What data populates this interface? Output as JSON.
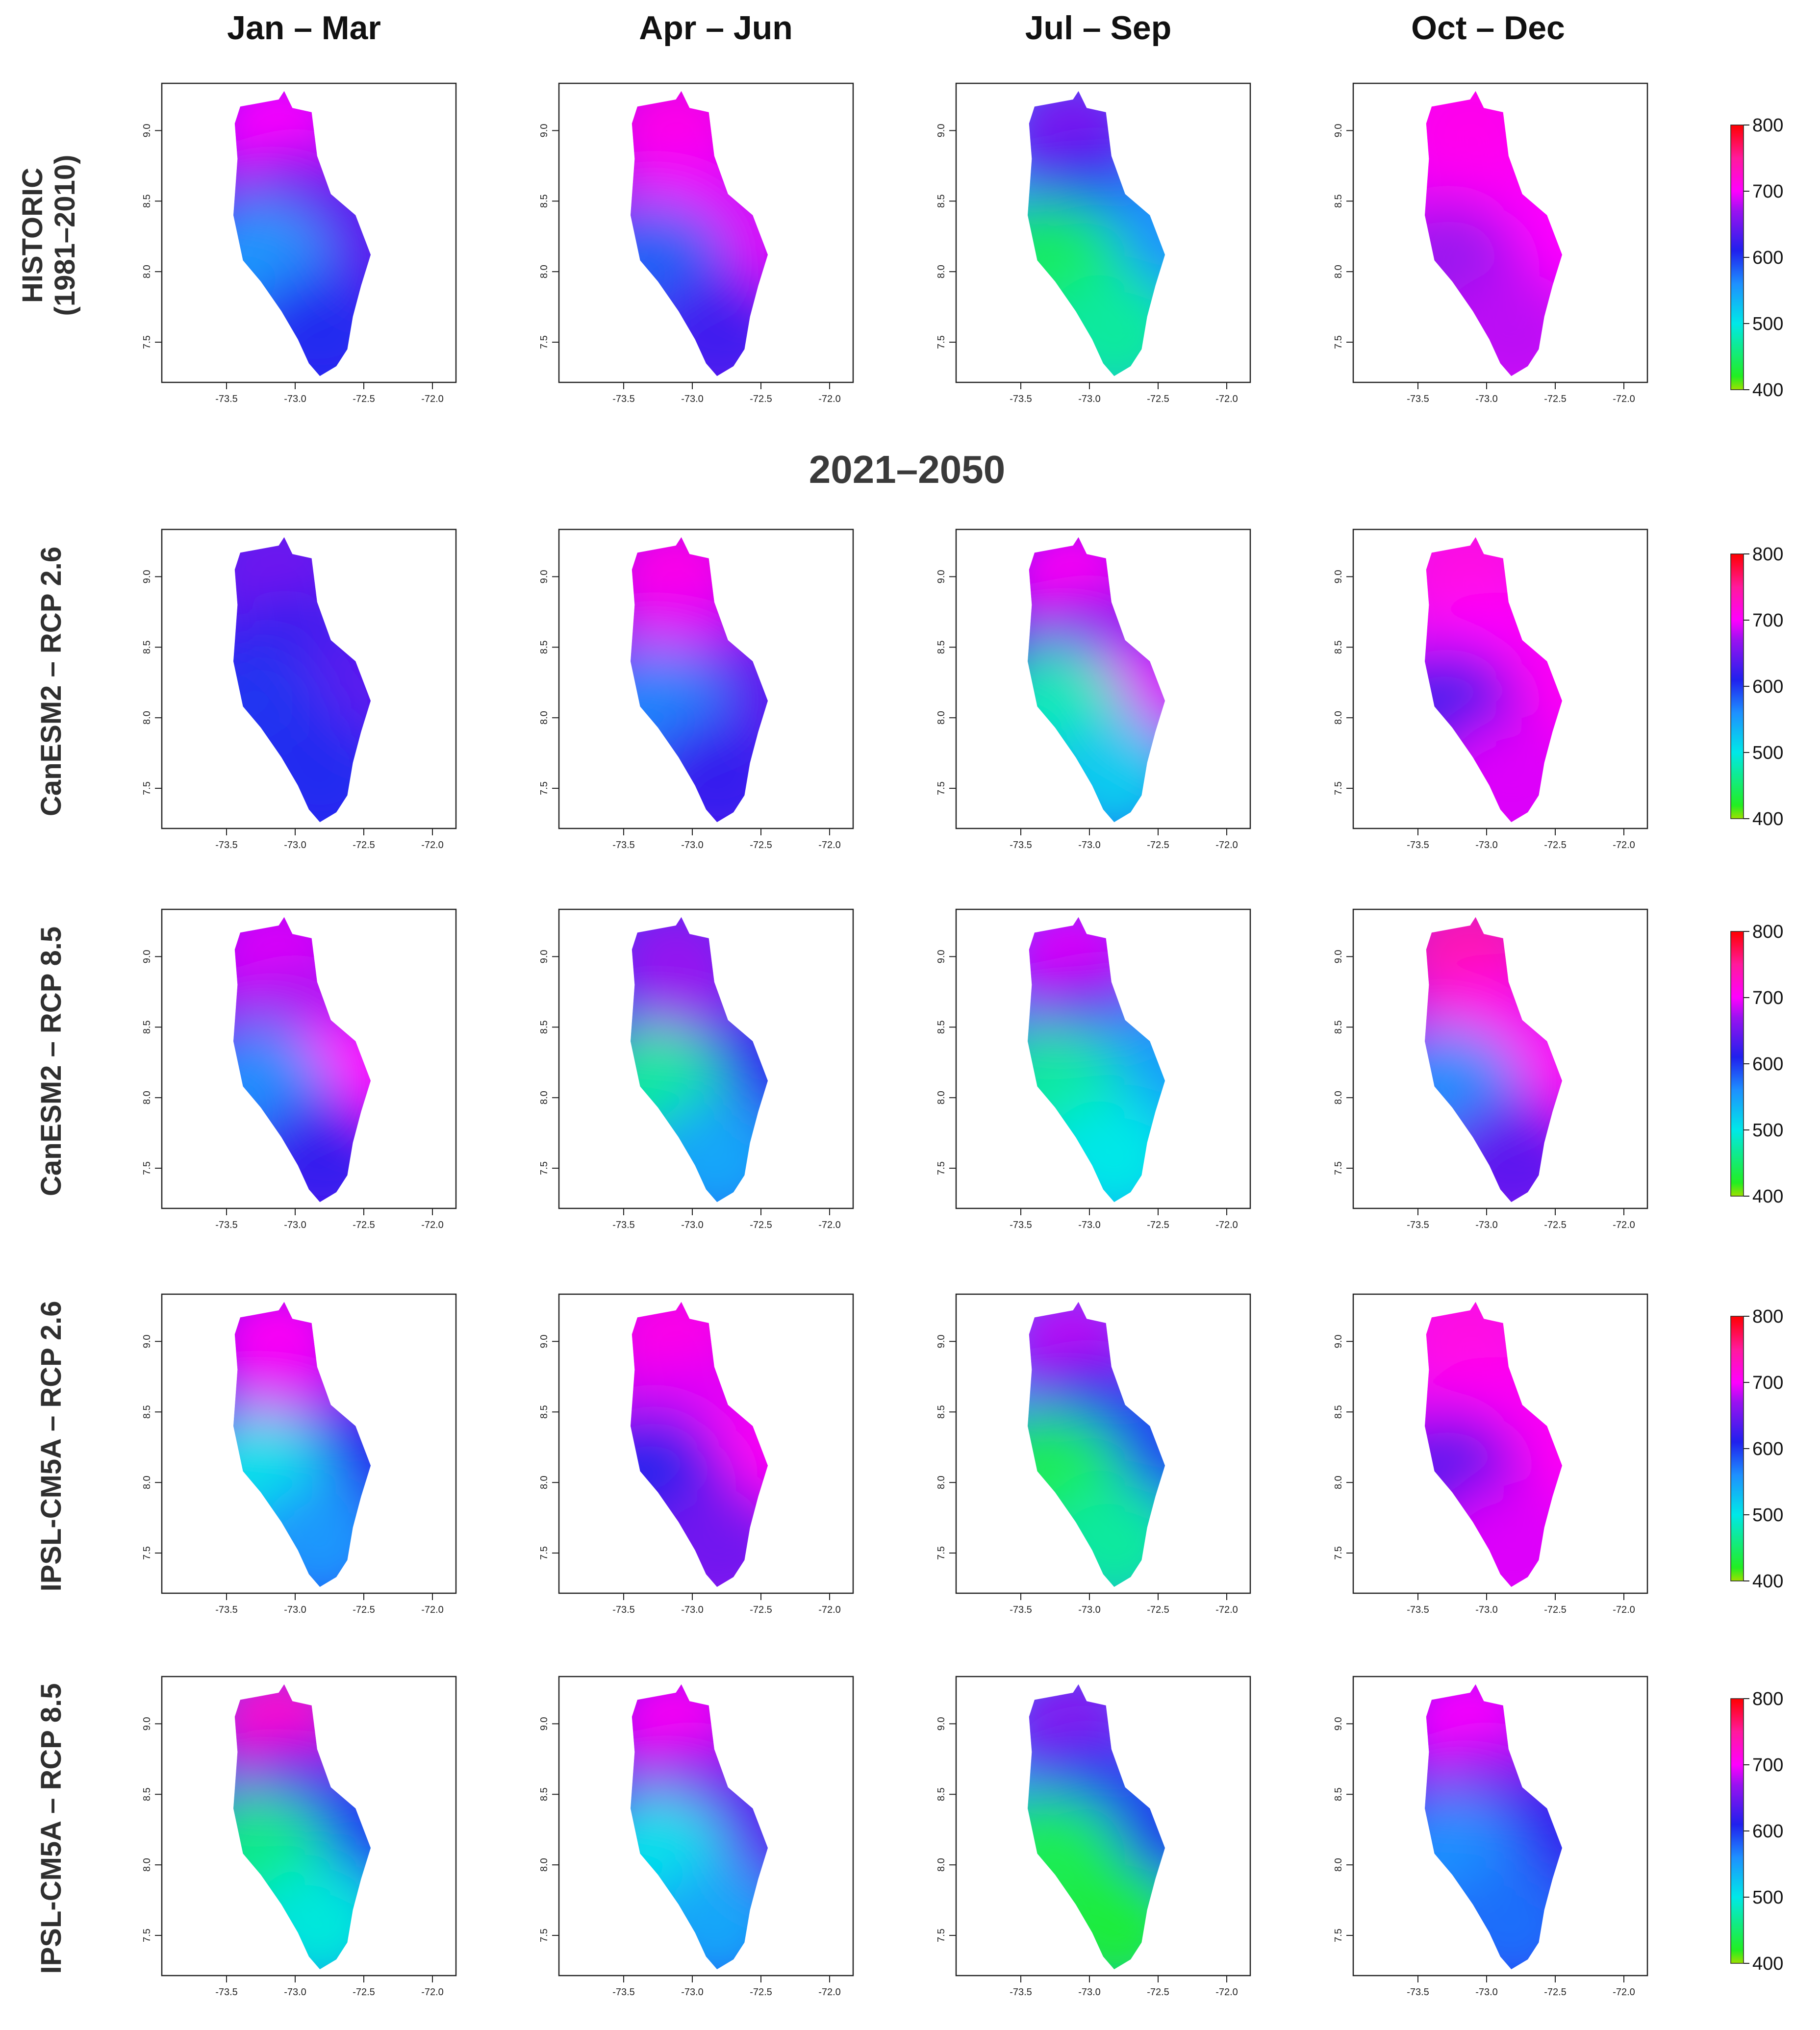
{
  "season_headers": [
    "Jan – Mar",
    "Apr – Jun",
    "Jul – Sep",
    "Oct – Dec"
  ],
  "period_title": "2021–2050",
  "rows": [
    {
      "label": "HISTORIC",
      "sublabel": "(1981–2010)"
    },
    {
      "label": "CanESM2 – RCP 2.6",
      "sublabel": ""
    },
    {
      "label": "CanESM2 – RCP 8.5",
      "sublabel": ""
    },
    {
      "label": "IPSL-CM5A – RCP 2.6",
      "sublabel": ""
    },
    {
      "label": "IPSL-CM5A – RCP 8.5",
      "sublabel": ""
    }
  ],
  "axes": {
    "x_ticks": [
      "-73.5",
      "-73.0",
      "-72.5",
      "-72.0"
    ],
    "y_ticks": [
      "9.0",
      "8.5",
      "8.0",
      "7.5"
    ],
    "xlim": [
      -73.9,
      -71.9
    ],
    "ylim": [
      7.25,
      9.3
    ]
  },
  "legend": {
    "labels": [
      "800",
      "700",
      "600",
      "500",
      "400"
    ],
    "range": [
      400,
      800
    ],
    "stops": [
      {
        "value": 400,
        "color": "#9de000"
      },
      {
        "value": 420,
        "color": "#22ee22"
      },
      {
        "value": 500,
        "color": "#00e8e8"
      },
      {
        "value": 560,
        "color": "#1e90ff"
      },
      {
        "value": 610,
        "color": "#2020ee"
      },
      {
        "value": 670,
        "color": "#9a12f0"
      },
      {
        "value": 700,
        "color": "#ff00ff"
      },
      {
        "value": 750,
        "color": "#ff1a9c"
      },
      {
        "value": 800,
        "color": "#ff0000"
      }
    ]
  },
  "chart_data": [
    {
      "type": "heatmap",
      "row": "HISTORIC (1981–2010)",
      "season": "Jan – Mar",
      "region_values": {
        "north": 700,
        "center": 650,
        "east": 640,
        "southwest": 555,
        "south": 605
      }
    },
    {
      "type": "heatmap",
      "row": "HISTORIC (1981–2010)",
      "season": "Apr – Jun",
      "region_values": {
        "north": 712,
        "center": 695,
        "east": 690,
        "southwest": 580,
        "south": 625
      }
    },
    {
      "type": "heatmap",
      "row": "HISTORIC (1981–2010)",
      "season": "Jul – Sep",
      "region_values": {
        "north": 655,
        "center": 610,
        "east": 560,
        "southwest": 445,
        "south": 470
      }
    },
    {
      "type": "heatmap",
      "row": "HISTORIC (1981–2010)",
      "season": "Oct – Dec",
      "region_values": {
        "north": 710,
        "center": 705,
        "east": 700,
        "southwest": 670,
        "south": 680
      }
    },
    {
      "type": "heatmap",
      "row": "CanESM2 – RCP 2.6",
      "season": "Jan – Mar",
      "region_values": {
        "north": 650,
        "center": 620,
        "east": 640,
        "southwest": 600,
        "south": 605
      }
    },
    {
      "type": "heatmap",
      "row": "CanESM2 – RCP 2.6",
      "season": "Apr – Jun",
      "region_values": {
        "north": 712,
        "center": 690,
        "east": 640,
        "southwest": 565,
        "south": 620
      }
    },
    {
      "type": "heatmap",
      "row": "CanESM2 – RCP 2.6",
      "season": "Jul – Sep",
      "region_values": {
        "north": 705,
        "center": 650,
        "east": 690,
        "southwest": 480,
        "south": 520
      }
    },
    {
      "type": "heatmap",
      "row": "CanESM2 – RCP 2.6",
      "season": "Oct – Dec",
      "region_values": {
        "north": 715,
        "center": 700,
        "east": 705,
        "southwest": 630,
        "south": 690
      }
    },
    {
      "type": "heatmap",
      "row": "CanESM2 – RCP 8.5",
      "season": "Jan – Mar",
      "region_values": {
        "north": 690,
        "center": 670,
        "east": 700,
        "southwest": 560,
        "south": 620
      }
    },
    {
      "type": "heatmap",
      "row": "CanESM2 – RCP 8.5",
      "season": "Apr – Jun",
      "region_values": {
        "north": 665,
        "center": 670,
        "east": 620,
        "southwest": 470,
        "south": 545
      }
    },
    {
      "type": "heatmap",
      "row": "CanESM2 – RCP 8.5",
      "season": "Jul – Sep",
      "region_values": {
        "north": 690,
        "center": 640,
        "east": 550,
        "southwest": 470,
        "south": 500
      }
    },
    {
      "type": "heatmap",
      "row": "CanESM2 – RCP 8.5",
      "season": "Oct – Dec",
      "region_values": {
        "north": 740,
        "center": 710,
        "east": 705,
        "southwest": 560,
        "south": 640
      }
    },
    {
      "type": "heatmap",
      "row": "IPSL-CM5A – RCP 2.6",
      "season": "Jan – Mar",
      "region_values": {
        "north": 705,
        "center": 690,
        "east": 615,
        "southwest": 505,
        "south": 555
      }
    },
    {
      "type": "heatmap",
      "row": "IPSL-CM5A – RCP 2.6",
      "season": "Apr – Jun",
      "region_values": {
        "north": 712,
        "center": 690,
        "east": 705,
        "southwest": 610,
        "south": 650
      }
    },
    {
      "type": "heatmap",
      "row": "IPSL-CM5A – RCP 2.6",
      "season": "Jul – Sep",
      "region_values": {
        "north": 680,
        "center": 615,
        "east": 600,
        "southwest": 440,
        "south": 470
      }
    },
    {
      "type": "heatmap",
      "row": "IPSL-CM5A – RCP 2.6",
      "season": "Oct – Dec",
      "region_values": {
        "north": 715,
        "center": 705,
        "east": 705,
        "southwest": 640,
        "south": 690
      }
    },
    {
      "type": "heatmap",
      "row": "IPSL-CM5A – RCP 8.5",
      "season": "Jan – Mar",
      "region_values": {
        "north": 725,
        "center": 640,
        "east": 600,
        "southwest": 460,
        "south": 495
      }
    },
    {
      "type": "heatmap",
      "row": "IPSL-CM5A – RCP 8.5",
      "season": "Apr – Jun",
      "region_values": {
        "north": 705,
        "center": 660,
        "east": 640,
        "southwest": 505,
        "south": 545
      }
    },
    {
      "type": "heatmap",
      "row": "IPSL-CM5A – RCP 8.5",
      "season": "Jul – Sep",
      "region_values": {
        "north": 660,
        "center": 600,
        "east": 610,
        "southwest": 440,
        "south": 430
      }
    },
    {
      "type": "heatmap",
      "row": "IPSL-CM5A – RCP 8.5",
      "season": "Oct – Dec",
      "region_values": {
        "north": 700,
        "center": 660,
        "east": 620,
        "southwest": 560,
        "south": 575
      }
    }
  ]
}
